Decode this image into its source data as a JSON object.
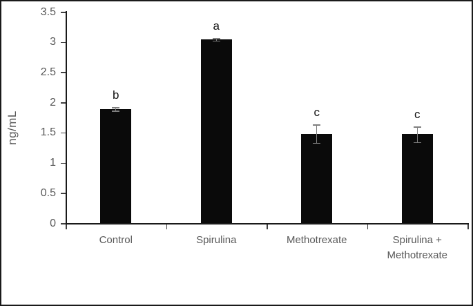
{
  "chart_data": {
    "type": "bar",
    "title": "",
    "xlabel": "",
    "ylabel": "ng/mL",
    "categories": [
      "Control",
      "Spirulina",
      "Methotrexate",
      "Spirulina +\nMethotrexate"
    ],
    "values": [
      1.89,
      3.04,
      1.48,
      1.47
    ],
    "errors": [
      0.03,
      0.02,
      0.15,
      0.13
    ],
    "sig_letters": [
      "b",
      "a",
      "c",
      "c"
    ],
    "ylim": [
      0,
      3.5
    ],
    "ytick_step": 0.5,
    "ytick_labels": [
      "0",
      "0.5",
      "1",
      "1.5",
      "2",
      "2.5",
      "3",
      "3.5"
    ],
    "grid": false,
    "legend": false,
    "colors": {
      "bar": "#0a0a0a",
      "error_bar": "#7f7f7f",
      "tick_label": "#595959",
      "axis": "#1a1a1a",
      "sig_letter": "#111111",
      "border": "#1a1a1a",
      "background": "#ffffff"
    }
  }
}
